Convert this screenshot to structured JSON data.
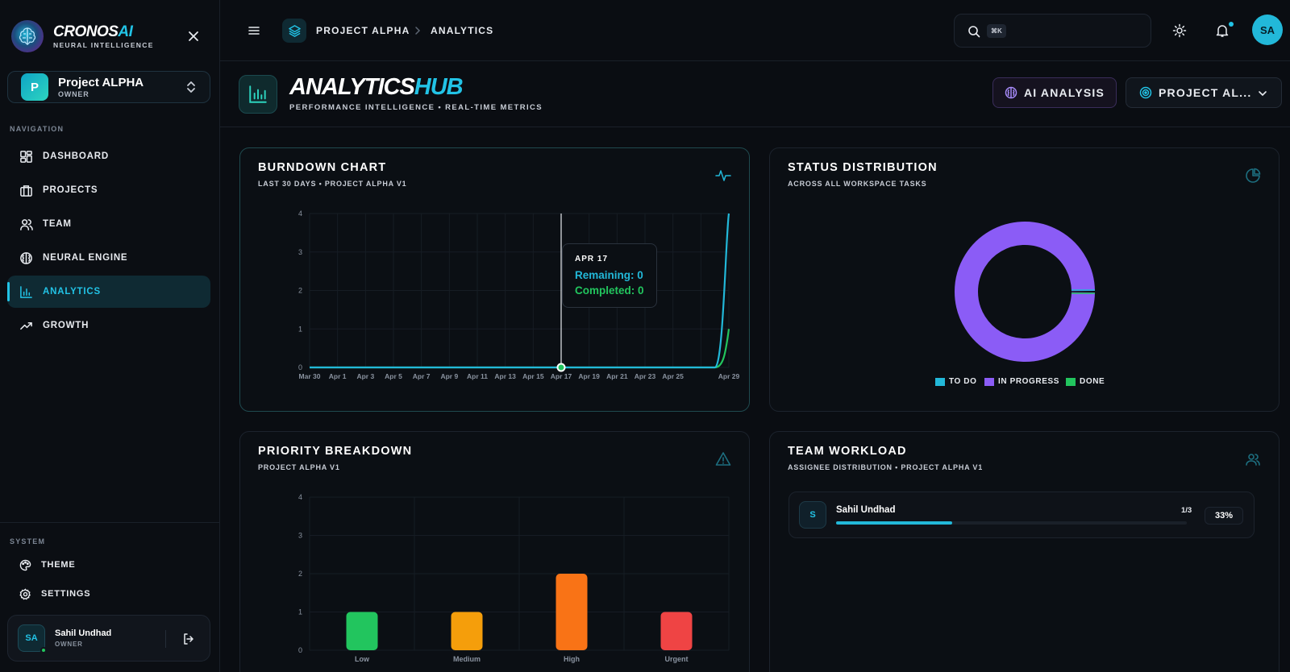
{
  "brand": {
    "name_main": "CRONOS",
    "name_accent": "AI",
    "subtitle": "NEURAL INTELLIGENCE"
  },
  "sidebar": {
    "project": {
      "initial": "P",
      "name": "Project ALPHA",
      "role": "OWNER"
    },
    "nav_heading": "NAVIGATION",
    "items": [
      {
        "label": "DASHBOARD",
        "icon": "grid-icon"
      },
      {
        "label": "PROJECTS",
        "icon": "briefcase-icon"
      },
      {
        "label": "TEAM",
        "icon": "users-icon"
      },
      {
        "label": "NEURAL ENGINE",
        "icon": "brain-icon"
      },
      {
        "label": "ANALYTICS",
        "icon": "bar-chart-icon",
        "active": true
      },
      {
        "label": "GROWTH",
        "icon": "trending-up-icon"
      }
    ],
    "system_heading": "SYSTEM",
    "system_items": [
      {
        "label": "THEME",
        "icon": "palette-icon"
      },
      {
        "label": "SETTINGS",
        "icon": "gear-icon"
      }
    ],
    "user": {
      "initials": "SA",
      "name": "Sahil Undhad",
      "role": "OWNER"
    }
  },
  "topbar": {
    "breadcrumb": [
      "PROJECT ALPHA",
      "ANALYTICS"
    ],
    "search_shortcut": "⌘K",
    "search_placeholder": "",
    "avatar_initials": "SA"
  },
  "header": {
    "title_main": "ANALYTICS",
    "title_accent": "HUB",
    "subtitle": "PERFORMANCE INTELLIGENCE • REAL-TIME METRICS",
    "ai_button": "AI ANALYSIS",
    "project_select": "PROJECT AL..."
  },
  "cards": {
    "burndown": {
      "title": "BURNDOWN CHART",
      "subtitle": "LAST 30 DAYS • PROJECT ALPHA V1"
    },
    "status": {
      "title": "STATUS DISTRIBUTION",
      "subtitle": "ACROSS ALL WORKSPACE TASKS"
    },
    "priority": {
      "title": "PRIORITY BREAKDOWN",
      "subtitle": "PROJECT ALPHA V1"
    },
    "workload": {
      "title": "TEAM WORKLOAD",
      "subtitle": "ASSIGNEE DISTRIBUTION • PROJECT ALPHA V1"
    }
  },
  "tooltip": {
    "date": "APR 17",
    "remaining": "Remaining: 0",
    "completed": "Completed: 0"
  },
  "workload": [
    {
      "initial": "S",
      "name": "Sahil Undhad",
      "count": "1/3",
      "percent_label": "33%",
      "fraction": 0.33
    }
  ],
  "colors": {
    "accent": "#22c3e6",
    "green": "#22c55e",
    "purple": "#8b5cf6",
    "orange": "#f97316",
    "amber": "#f59e0b",
    "red": "#ef4444"
  },
  "chart_data": [
    {
      "type": "line",
      "title": "BURNDOWN CHART",
      "x": [
        "Mar 30",
        "Mar 31",
        "Apr 1",
        "Apr 2",
        "Apr 3",
        "Apr 4",
        "Apr 5",
        "Apr 6",
        "Apr 7",
        "Apr 8",
        "Apr 9",
        "Apr 10",
        "Apr 11",
        "Apr 12",
        "Apr 13",
        "Apr 14",
        "Apr 15",
        "Apr 16",
        "Apr 17",
        "Apr 18",
        "Apr 19",
        "Apr 20",
        "Apr 21",
        "Apr 22",
        "Apr 23",
        "Apr 24",
        "Apr 25",
        "Apr 26",
        "Apr 27",
        "Apr 28",
        "Apr 29"
      ],
      "x_tick_labels": [
        "Mar 30",
        "Apr 1",
        "Apr 3",
        "Apr 5",
        "Apr 7",
        "Apr 9",
        "Apr 11",
        "Apr 13",
        "Apr 15",
        "Apr 17",
        "Apr 19",
        "Apr 21",
        "Apr 23",
        "Apr 25",
        "Apr 29"
      ],
      "series": [
        {
          "name": "Remaining",
          "color": "#22b8d9",
          "values": [
            0,
            0,
            0,
            0,
            0,
            0,
            0,
            0,
            0,
            0,
            0,
            0,
            0,
            0,
            0,
            0,
            0,
            0,
            0,
            0,
            0,
            0,
            0,
            0,
            0,
            0,
            0,
            0,
            0,
            0,
            4
          ]
        },
        {
          "name": "Completed",
          "color": "#22c55e",
          "values": [
            0,
            0,
            0,
            0,
            0,
            0,
            0,
            0,
            0,
            0,
            0,
            0,
            0,
            0,
            0,
            0,
            0,
            0,
            0,
            0,
            0,
            0,
            0,
            0,
            0,
            0,
            0,
            0,
            0,
            0,
            1
          ]
        }
      ],
      "ylim": [
        0,
        4
      ],
      "y_ticks": [
        0,
        1,
        2,
        3,
        4
      ],
      "grid": true
    },
    {
      "type": "pie",
      "title": "STATUS DISTRIBUTION",
      "categories": [
        "TO DO",
        "IN PROGRESS",
        "DONE"
      ],
      "values": [
        0,
        3,
        0
      ],
      "colors": [
        "#22b8d9",
        "#8b5cf6",
        "#22c55e"
      ],
      "legend": "bottom"
    },
    {
      "type": "bar",
      "title": "PRIORITY BREAKDOWN",
      "categories": [
        "Low",
        "Medium",
        "High",
        "Urgent"
      ],
      "values": [
        1,
        1,
        2,
        1
      ],
      "colors": [
        "#22c55e",
        "#f59e0b",
        "#f97316",
        "#ef4444"
      ],
      "ylim": [
        0,
        4
      ],
      "y_ticks": [
        0,
        1,
        2,
        3,
        4
      ],
      "grid": true
    }
  ]
}
